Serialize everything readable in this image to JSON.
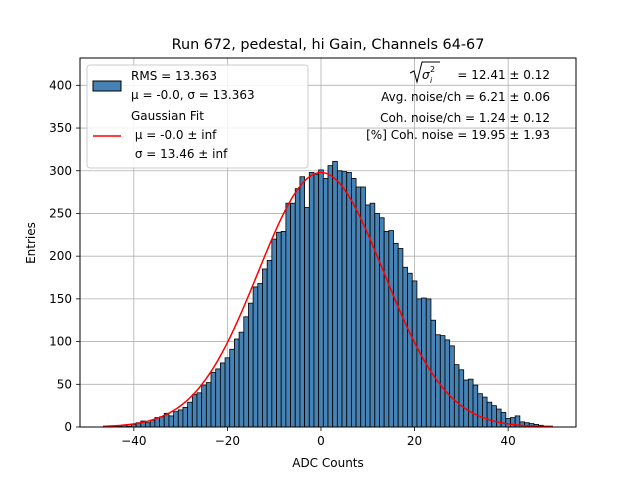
{
  "chart_data": {
    "type": "bar",
    "title": "Run 672, pedestal, hi Gain, Channels 64-67",
    "xlabel": "ADC Counts",
    "ylabel": "Entries",
    "xlim": [
      -51.5,
      54.5
    ],
    "ylim": [
      0,
      432
    ],
    "xticks": [
      -40,
      -20,
      0,
      20,
      40
    ],
    "yticks": [
      0,
      50,
      100,
      150,
      200,
      250,
      300,
      350,
      400
    ],
    "grid": true,
    "legend_position": "top-left",
    "bar_color": "#4682b4",
    "fit_color": "#ff0000",
    "bins": {
      "start": -46.5,
      "width": 1,
      "values": [
        1,
        1,
        1,
        1,
        2,
        1,
        3,
        5,
        7,
        5,
        8,
        11,
        12,
        16,
        13,
        18,
        20,
        23,
        29,
        38,
        40,
        49,
        52,
        64,
        68,
        75,
        81,
        91,
        103,
        111,
        129,
        145,
        164,
        168,
        185,
        195,
        220,
        228,
        229,
        262,
        262,
        279,
        293,
        257,
        298,
        296,
        301,
        291,
        306,
        311,
        300,
        299,
        298,
        291,
        281,
        281,
        260,
        262,
        250,
        245,
        229,
        230,
        215,
        209,
        187,
        180,
        171,
        150,
        151,
        150,
        125,
        108,
        107,
        102,
        95,
        73,
        67,
        55,
        56,
        49,
        39,
        35,
        29,
        25,
        21,
        17,
        10,
        11,
        13,
        6,
        5,
        4,
        3,
        2,
        1,
        1
      ]
    },
    "series": [
      {
        "name": "RMS = 13.363",
        "type": "histogram"
      },
      {
        "name": "Gaussian Fit",
        "type": "line",
        "mean": 0.0,
        "sigma": 13.46,
        "peak": 298
      }
    ],
    "legend": {
      "hist_lines": [
        "RMS = 13.363",
        "μ = -0.0, σ = 13.363"
      ],
      "fit_lines": [
        "Gaussian Fit",
        " μ = -0.0 ± inf",
        " σ = 13.46 ± inf"
      ]
    },
    "annotations": {
      "sigma_sum_label": "= 12.41 ± 0.12",
      "avg_noise": "Avg. noise/ch = 6.21 ± 0.06",
      "coh_noise": "Coh. noise/ch = 1.24 ± 0.12",
      "coh_percent": "[%] Coh. noise = 19.95 ± 1.93"
    }
  }
}
